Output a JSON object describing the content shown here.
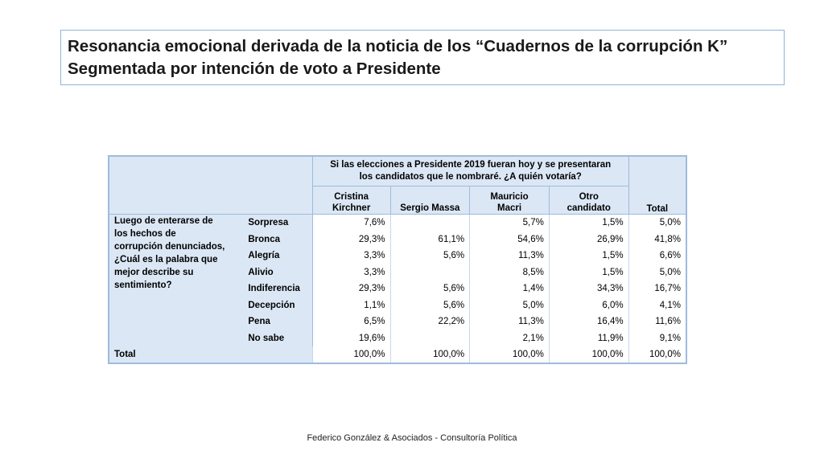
{
  "title": {
    "line1": "Resonancia emocional derivada de la noticia de los “Cuadernos de la corrupción K”",
    "line2": "Segmentada por intención de voto a Presidente"
  },
  "table": {
    "question_top_line1": "Si las elecciones a Presidente 2019 fueran hoy y se presentaran",
    "question_top_line2": "los candidatos que le nombraré. ¿A quién votaría?",
    "columns": [
      {
        "line1": "Cristina",
        "line2": "Kirchner"
      },
      {
        "line1": "",
        "line2": "Sergio Massa"
      },
      {
        "line1": "Mauricio",
        "line2": "Macri"
      },
      {
        "line1": "Otro",
        "line2": "candidato"
      }
    ],
    "total_header": "Total",
    "row_question_lines": [
      "Luego de enterarse de",
      "los hechos de",
      "corrupción denunciados,",
      "¿Cuál es la palabra que",
      "mejor describe su",
      "sentimiento?"
    ],
    "rows": [
      {
        "label": "Sorpresa",
        "values": [
          "7,6%",
          "",
          "5,7%",
          "1,5%",
          "5,0%"
        ]
      },
      {
        "label": "Bronca",
        "values": [
          "29,3%",
          "61,1%",
          "54,6%",
          "26,9%",
          "41,8%"
        ]
      },
      {
        "label": "Alegría",
        "values": [
          "3,3%",
          "5,6%",
          "11,3%",
          "1,5%",
          "6,6%"
        ]
      },
      {
        "label": "Alivio",
        "values": [
          "3,3%",
          "",
          "8,5%",
          "1,5%",
          "5,0%"
        ]
      },
      {
        "label": "Indiferencia",
        "values": [
          "29,3%",
          "5,6%",
          "1,4%",
          "34,3%",
          "16,7%"
        ]
      },
      {
        "label": "Decepción",
        "values": [
          "1,1%",
          "5,6%",
          "5,0%",
          "6,0%",
          "4,1%"
        ]
      },
      {
        "label": "Pena",
        "values": [
          "6,5%",
          "22,2%",
          "11,3%",
          "16,4%",
          "11,6%"
        ]
      },
      {
        "label": "No sabe",
        "values": [
          "19,6%",
          "",
          "2,1%",
          "11,9%",
          "9,1%"
        ]
      }
    ],
    "total_row": {
      "label": "Total",
      "values": [
        "100,0%",
        "100,0%",
        "100,0%",
        "100,0%",
        "100,0%"
      ]
    }
  },
  "footer": "Federico González & Asociados - Consultoría Política"
}
